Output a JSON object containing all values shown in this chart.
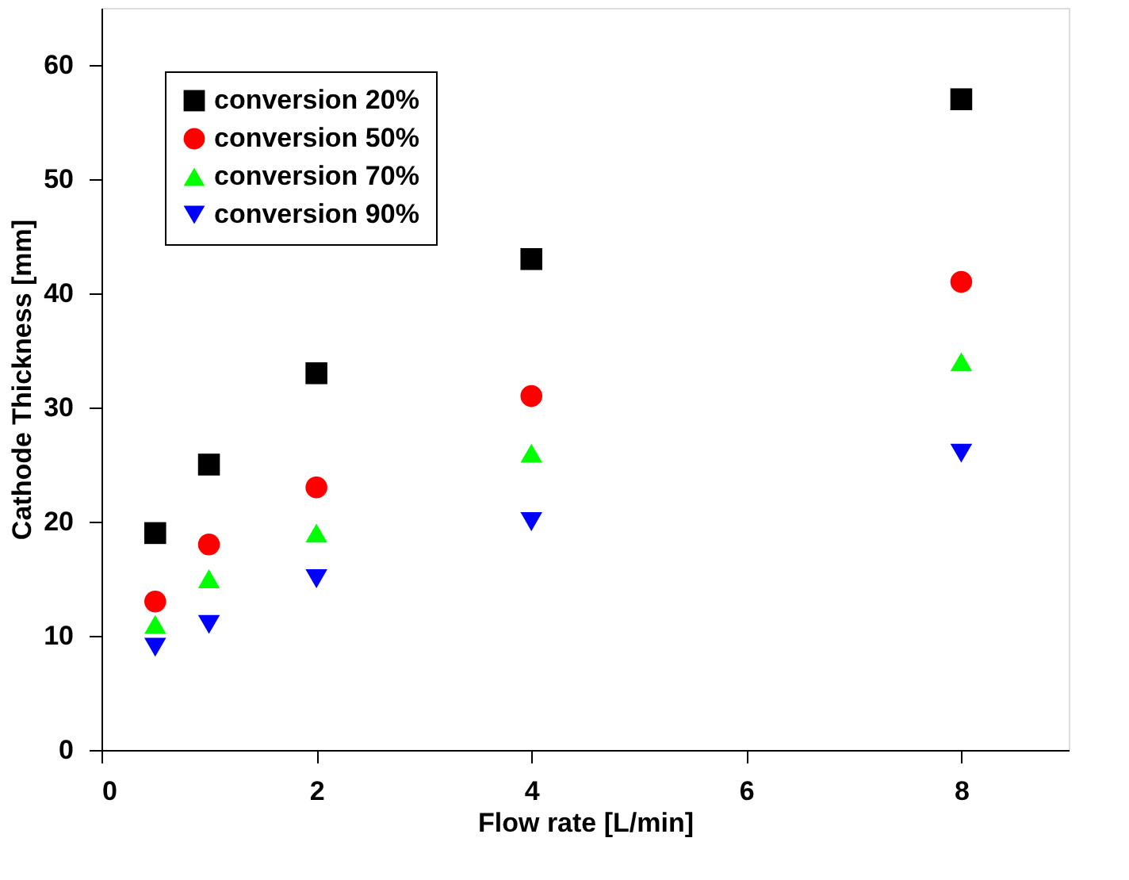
{
  "chart_data": {
    "type": "scatter",
    "xlabel": "Flow rate [L/min]",
    "ylabel": "Cathode Thickness [mm]",
    "x": [
      0.5,
      1,
      2,
      4,
      8
    ],
    "series": [
      {
        "name": "conversion 20%",
        "color": "#000000",
        "marker": "square",
        "values": [
          19,
          25,
          33,
          43,
          57
        ]
      },
      {
        "name": "conversion 50%",
        "color": "#ff0000",
        "marker": "circle",
        "values": [
          13,
          18,
          23,
          31,
          41
        ]
      },
      {
        "name": "conversion 70%",
        "color": "#00ff00",
        "marker": "triangle",
        "values": [
          11,
          15,
          19,
          26,
          34
        ]
      },
      {
        "name": "conversion 90%",
        "color": "#0000ff",
        "marker": "triangle-down",
        "values": [
          9,
          11,
          15,
          20,
          26
        ]
      }
    ],
    "xlim": [
      0,
      9
    ],
    "xticks": [
      0,
      2,
      4,
      6,
      8
    ],
    "ylim": [
      0,
      65
    ],
    "yticks": [
      0,
      10,
      20,
      30,
      40,
      50,
      60
    ],
    "grid": false,
    "legend": "top left"
  }
}
